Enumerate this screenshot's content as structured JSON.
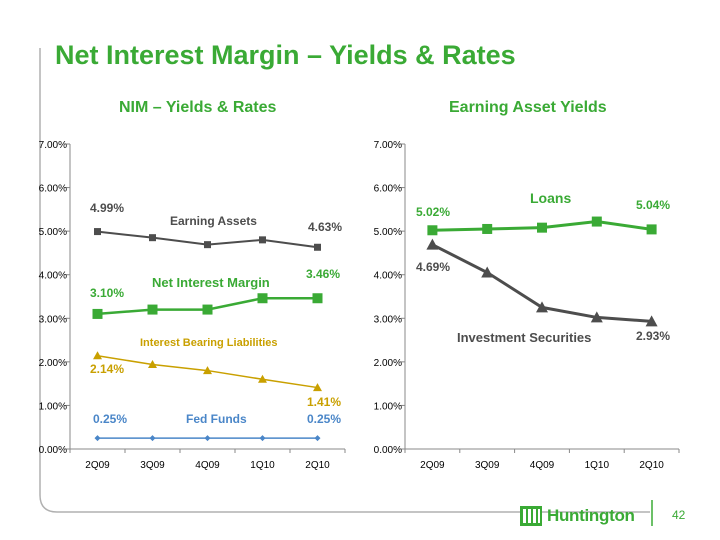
{
  "slide": {
    "title": "Net Interest Margin – Yields & Rates",
    "page_number": "42",
    "brand": "Huntington",
    "brand_color": "#3aaa35",
    "logo_icon": "huntington-logo-icon"
  },
  "chart_data": [
    {
      "type": "line",
      "title": "NIM – Yields & Rates",
      "categories": [
        "2Q09",
        "3Q09",
        "4Q09",
        "1Q10",
        "2Q10"
      ],
      "yticks": [
        "0.00%",
        "1.00%",
        "2.00%",
        "3.00%",
        "4.00%",
        "5.00%",
        "6.00%",
        "7.00%"
      ],
      "ylim": [
        0,
        7
      ],
      "grid": false,
      "series": [
        {
          "name": "Earning Assets",
          "values": [
            4.99,
            4.85,
            4.69,
            4.8,
            4.63
          ],
          "color": "#4d4d4d",
          "marker": "square",
          "first_label": "4.99%",
          "last_label": "4.63%",
          "label_color": "#4d4d4d"
        },
        {
          "name": "Net Interest Margin",
          "values": [
            3.1,
            3.2,
            3.2,
            3.46,
            3.46
          ],
          "color": "#3aaa35",
          "marker": "square",
          "first_label": "3.10%",
          "last_label": "3.46%",
          "label_color": "#3aaa35"
        },
        {
          "name": "Interest Bearing Liabilities",
          "values": [
            2.14,
            1.94,
            1.8,
            1.6,
            1.41
          ],
          "color": "#c9a000",
          "marker": "triangle",
          "first_label": "2.14%",
          "last_label": "1.41%",
          "label_color": "#c9a000"
        },
        {
          "name": "Fed Funds",
          "values": [
            0.25,
            0.25,
            0.25,
            0.25,
            0.25
          ],
          "color": "#4a86c8",
          "marker": "diamond",
          "first_label": "0.25%",
          "last_label": "0.25%",
          "label_color": "#4a86c8"
        }
      ]
    },
    {
      "type": "line",
      "title": "Earning Asset Yields",
      "categories": [
        "2Q09",
        "3Q09",
        "4Q09",
        "1Q10",
        "2Q10"
      ],
      "yticks": [
        "0.00%",
        "1.00%",
        "2.00%",
        "3.00%",
        "4.00%",
        "5.00%",
        "6.00%",
        "7.00%"
      ],
      "ylim": [
        0,
        7
      ],
      "grid": false,
      "series": [
        {
          "name": "Loans",
          "values": [
            5.02,
            5.05,
            5.08,
            5.22,
            5.04
          ],
          "color": "#3aaa35",
          "marker": "square",
          "first_label": "5.02%",
          "last_label": "5.04%",
          "label_color": "#3aaa35"
        },
        {
          "name": "Investment Securities",
          "values": [
            4.69,
            4.05,
            3.25,
            3.02,
            2.93
          ],
          "color": "#4d4d4d",
          "marker": "triangle",
          "first_label": "4.69%",
          "last_label": "2.93%",
          "label_color": "#4d4d4d"
        }
      ]
    }
  ]
}
